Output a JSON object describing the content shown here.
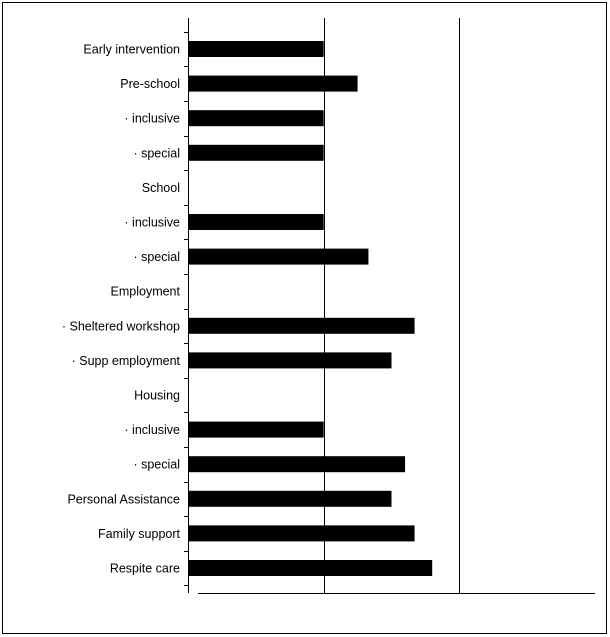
{
  "chart_data": {
    "type": "bar",
    "orientation": "horizontal",
    "title": "",
    "xlabel": "",
    "ylabel": "",
    "categories": [
      "Early intervention",
      "Pre-school",
      "· inclusive",
      "· special",
      "School",
      "· inclusive",
      "· special",
      "Employment",
      "· Sheltered workshop",
      "· Supp employment",
      "Housing",
      "· inclusive",
      "· special",
      "Personal Assistance",
      "Family support",
      "Respite care"
    ],
    "values": [
      1.0,
      1.25,
      1.0,
      1.0,
      null,
      1.0,
      1.33,
      null,
      1.67,
      1.5,
      null,
      1.0,
      1.6,
      1.5,
      1.67,
      1.8
    ],
    "xlim": [
      0,
      3
    ],
    "gridlines_x": [
      1,
      2
    ],
    "grid": true,
    "legend": "none",
    "bar_color": "#000000"
  }
}
